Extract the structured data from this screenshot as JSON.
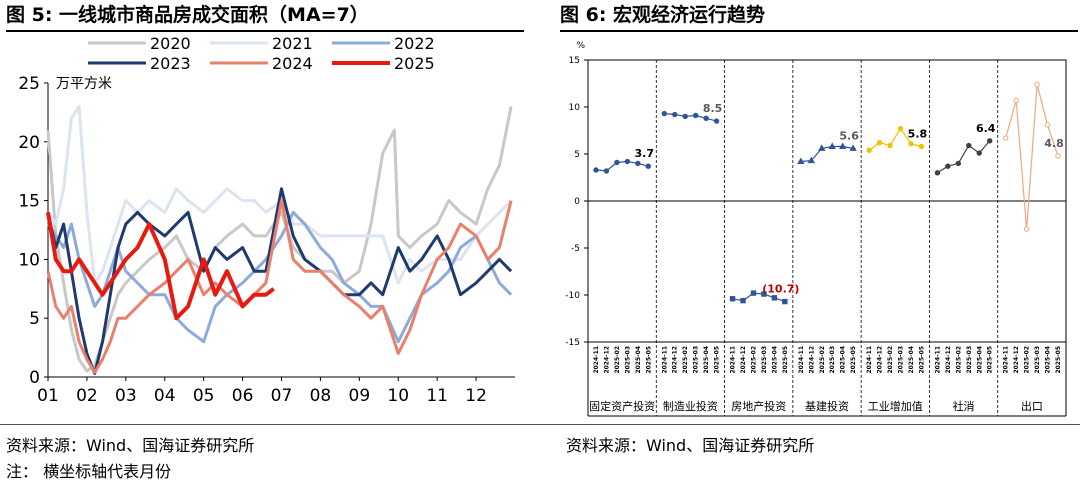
{
  "left": {
    "title": "图 5:  一线城市商品房成交面积（MA=7）",
    "source": "资料来源：Wind、国海证券研究所",
    "chart_data": {
      "type": "line",
      "unit_label": "万平方米",
      "ylim": [
        0,
        25
      ],
      "yticks": [
        "0",
        "5",
        "10",
        "15",
        "20",
        "25"
      ],
      "xticks": [
        "01",
        "02",
        "03",
        "04",
        "05",
        "06",
        "07",
        "08",
        "09",
        "10",
        "11",
        "12"
      ],
      "x_range": [
        1,
        13
      ],
      "legend_position": "top",
      "series": [
        {
          "name": "2020",
          "color": "#c8c8c8",
          "width": 3,
          "x": [
            1.0,
            1.2,
            1.4,
            1.6,
            1.8,
            2.0,
            2.2,
            2.4,
            2.6,
            2.8,
            3.0,
            3.3,
            3.6,
            4.0,
            4.3,
            4.6,
            5.0,
            5.3,
            5.6,
            6.0,
            6.3,
            6.6,
            7.0,
            7.3,
            7.6,
            8.0,
            8.3,
            8.6,
            9.0,
            9.3,
            9.6,
            9.9,
            10.0,
            10.3,
            10.6,
            11.0,
            11.3,
            11.6,
            12.0,
            12.3,
            12.6,
            12.9
          ],
          "y": [
            21,
            12,
            8,
            4,
            1.5,
            0.5,
            1,
            3,
            5,
            7,
            8,
            9,
            10,
            11,
            12,
            10,
            9,
            11,
            12,
            13,
            12,
            12,
            14,
            11,
            10,
            9,
            9,
            8,
            9,
            13,
            19,
            21,
            12,
            11,
            12,
            13,
            15,
            14,
            13,
            16,
            18,
            23
          ]
        },
        {
          "name": "2021",
          "color": "#dbe4f1",
          "width": 3,
          "x": [
            1.0,
            1.2,
            1.4,
            1.6,
            1.8,
            2.0,
            2.2,
            2.4,
            2.6,
            2.8,
            3.0,
            3.3,
            3.6,
            4.0,
            4.3,
            4.6,
            5.0,
            5.3,
            5.6,
            6.0,
            6.3,
            6.6,
            7.0,
            7.3,
            7.6,
            8.0,
            8.3,
            8.6,
            9.0,
            9.3,
            9.6,
            10.0,
            10.3,
            10.6,
            11.0,
            11.3,
            11.6,
            12.0,
            12.3,
            12.6,
            12.9
          ],
          "y": [
            14,
            13,
            16,
            22,
            23,
            14,
            8,
            9,
            11,
            13,
            15,
            14,
            15,
            14,
            16,
            15,
            14,
            15,
            16,
            15,
            15,
            14,
            15,
            13,
            13,
            12,
            12,
            12,
            12,
            12,
            12,
            8,
            10,
            9,
            10,
            10,
            10,
            12,
            13,
            14,
            15
          ]
        },
        {
          "name": "2022",
          "color": "#8eaadb",
          "width": 3,
          "x": [
            1.0,
            1.2,
            1.4,
            1.6,
            1.8,
            2.0,
            2.2,
            2.4,
            2.6,
            2.8,
            3.0,
            3.3,
            3.6,
            4.0,
            4.3,
            4.6,
            5.0,
            5.3,
            5.6,
            6.0,
            6.3,
            6.6,
            7.0,
            7.3,
            7.6,
            8.0,
            8.3,
            8.6,
            9.0,
            9.3,
            9.6,
            10.0,
            10.3,
            10.6,
            11.0,
            11.3,
            11.6,
            12.0,
            12.3,
            12.6,
            12.9
          ],
          "y": [
            13,
            12,
            11,
            13,
            10,
            8,
            6,
            7,
            9,
            11,
            9,
            8,
            7,
            7,
            5,
            4,
            3,
            6,
            7,
            8,
            9,
            10,
            12,
            14,
            13,
            11,
            10,
            8,
            7,
            6,
            6,
            3,
            5,
            7,
            8,
            9,
            11,
            12,
            10,
            8,
            7
          ]
        },
        {
          "name": "2023",
          "color": "#1f3a6e",
          "width": 3,
          "x": [
            1.0,
            1.2,
            1.4,
            1.6,
            1.8,
            2.0,
            2.2,
            2.4,
            2.6,
            2.8,
            3.0,
            3.3,
            3.6,
            4.0,
            4.3,
            4.6,
            5.0,
            5.3,
            5.6,
            6.0,
            6.3,
            6.6,
            7.0,
            7.3,
            7.6,
            8.0,
            8.3,
            8.6,
            9.0,
            9.3,
            9.6,
            10.0,
            10.3,
            10.6,
            11.0,
            11.3,
            11.6,
            12.0,
            12.3,
            12.6,
            12.9
          ],
          "y": [
            14,
            11,
            13,
            9,
            5,
            2,
            0.3,
            3,
            7,
            11,
            13,
            14,
            13,
            12,
            13,
            14,
            9,
            11,
            10,
            11,
            9,
            9,
            16,
            12,
            10,
            9,
            8,
            7,
            7,
            8,
            7,
            11,
            9,
            10,
            12,
            10,
            7,
            8,
            9,
            10,
            9
          ]
        },
        {
          "name": "2024",
          "color": "#e9806b",
          "width": 3,
          "x": [
            1.0,
            1.2,
            1.4,
            1.6,
            1.8,
            2.0,
            2.2,
            2.4,
            2.6,
            2.8,
            3.0,
            3.3,
            3.6,
            4.0,
            4.3,
            4.6,
            5.0,
            5.3,
            5.6,
            6.0,
            6.3,
            6.6,
            7.0,
            7.3,
            7.6,
            8.0,
            8.3,
            8.6,
            9.0,
            9.3,
            9.6,
            10.0,
            10.3,
            10.6,
            11.0,
            11.3,
            11.6,
            12.0,
            12.3,
            12.6,
            12.9
          ],
          "y": [
            9,
            6,
            5,
            6,
            3,
            1.5,
            0.4,
            1.5,
            3,
            5,
            5,
            6,
            7,
            8,
            9,
            10,
            7,
            8,
            7,
            6,
            7,
            8,
            15,
            10,
            9,
            9,
            8,
            7,
            6,
            5,
            6,
            2,
            4,
            7,
            10,
            11,
            13,
            12,
            10,
            11,
            15
          ]
        },
        {
          "name": "2025",
          "color": "#e8190f",
          "width": 4,
          "x": [
            1.0,
            1.2,
            1.4,
            1.6,
            1.8,
            2.0,
            2.2,
            2.4,
            2.6,
            2.8,
            3.0,
            3.3,
            3.6,
            4.0,
            4.3,
            4.6,
            5.0,
            5.3,
            5.6,
            6.0,
            6.3,
            6.6,
            6.8
          ],
          "y": [
            14,
            10,
            9,
            9,
            10,
            9,
            8,
            7,
            8,
            9,
            10,
            11,
            13,
            10,
            5,
            6,
            10,
            7,
            9,
            6,
            7,
            7,
            7.5
          ]
        }
      ]
    },
    "note": "注：  横坐标轴代表月份"
  },
  "right": {
    "title": "图 6:  宏观经济运行趋势",
    "source": "资料来源：Wind、国海证券研究所",
    "chart_data": {
      "type": "line",
      "unit_label": "%",
      "ylim": [
        -15,
        15
      ],
      "yticks": [
        "-15",
        "-10",
        "-5",
        "0",
        "5",
        "10",
        "15"
      ],
      "months": [
        "2024-11",
        "2024-12",
        "2025-02",
        "2025-03",
        "2025-04",
        "2025-05"
      ],
      "groups": [
        {
          "name": "固定资产投资",
          "color": "#2e5597",
          "marker": "circle",
          "fill": "#2e5597",
          "values": [
            3.3,
            3.2,
            4.1,
            4.2,
            4.0,
            3.7
          ],
          "label": "3.7",
          "label_color": "#000"
        },
        {
          "name": "制造业投资",
          "color": "#2e5597",
          "marker": "circle",
          "fill": "#2e5597",
          "values": [
            9.3,
            9.2,
            9.0,
            9.1,
            8.8,
            8.5
          ],
          "label": "8.5",
          "label_color": "#595959"
        },
        {
          "name": "房地产投资",
          "color": "#2e5597",
          "marker": "square",
          "fill": "#2e5597",
          "values": [
            -10.4,
            -10.6,
            -9.8,
            -9.9,
            -10.3,
            -10.7
          ],
          "label": "(10.7)",
          "label_color": "#c00000"
        },
        {
          "name": "基建投资",
          "color": "#2e5597",
          "marker": "triangle",
          "fill": "#2e5597",
          "values": [
            4.2,
            4.3,
            5.6,
            5.8,
            5.8,
            5.6
          ],
          "label": "5.6",
          "label_color": "#595959"
        },
        {
          "name": "工业增加值",
          "color": "#f2c200",
          "marker": "circle",
          "fill": "#f2c200",
          "values": [
            5.4,
            6.2,
            5.9,
            7.7,
            6.1,
            5.8
          ],
          "label": "5.8",
          "label_color": "#000"
        },
        {
          "name": "社消",
          "color": "#404040",
          "marker": "circle",
          "fill": "#404040",
          "values": [
            3.0,
            3.7,
            4.0,
            5.9,
            5.1,
            6.4
          ],
          "label": "6.4",
          "label_color": "#000"
        },
        {
          "name": "出口",
          "color": "#f0a878",
          "marker": "circle",
          "fill": "#ffffff",
          "values": [
            6.7,
            10.7,
            -3.0,
            12.4,
            8.1,
            4.8
          ],
          "label": "4.8",
          "label_color": "#595959"
        }
      ]
    }
  }
}
